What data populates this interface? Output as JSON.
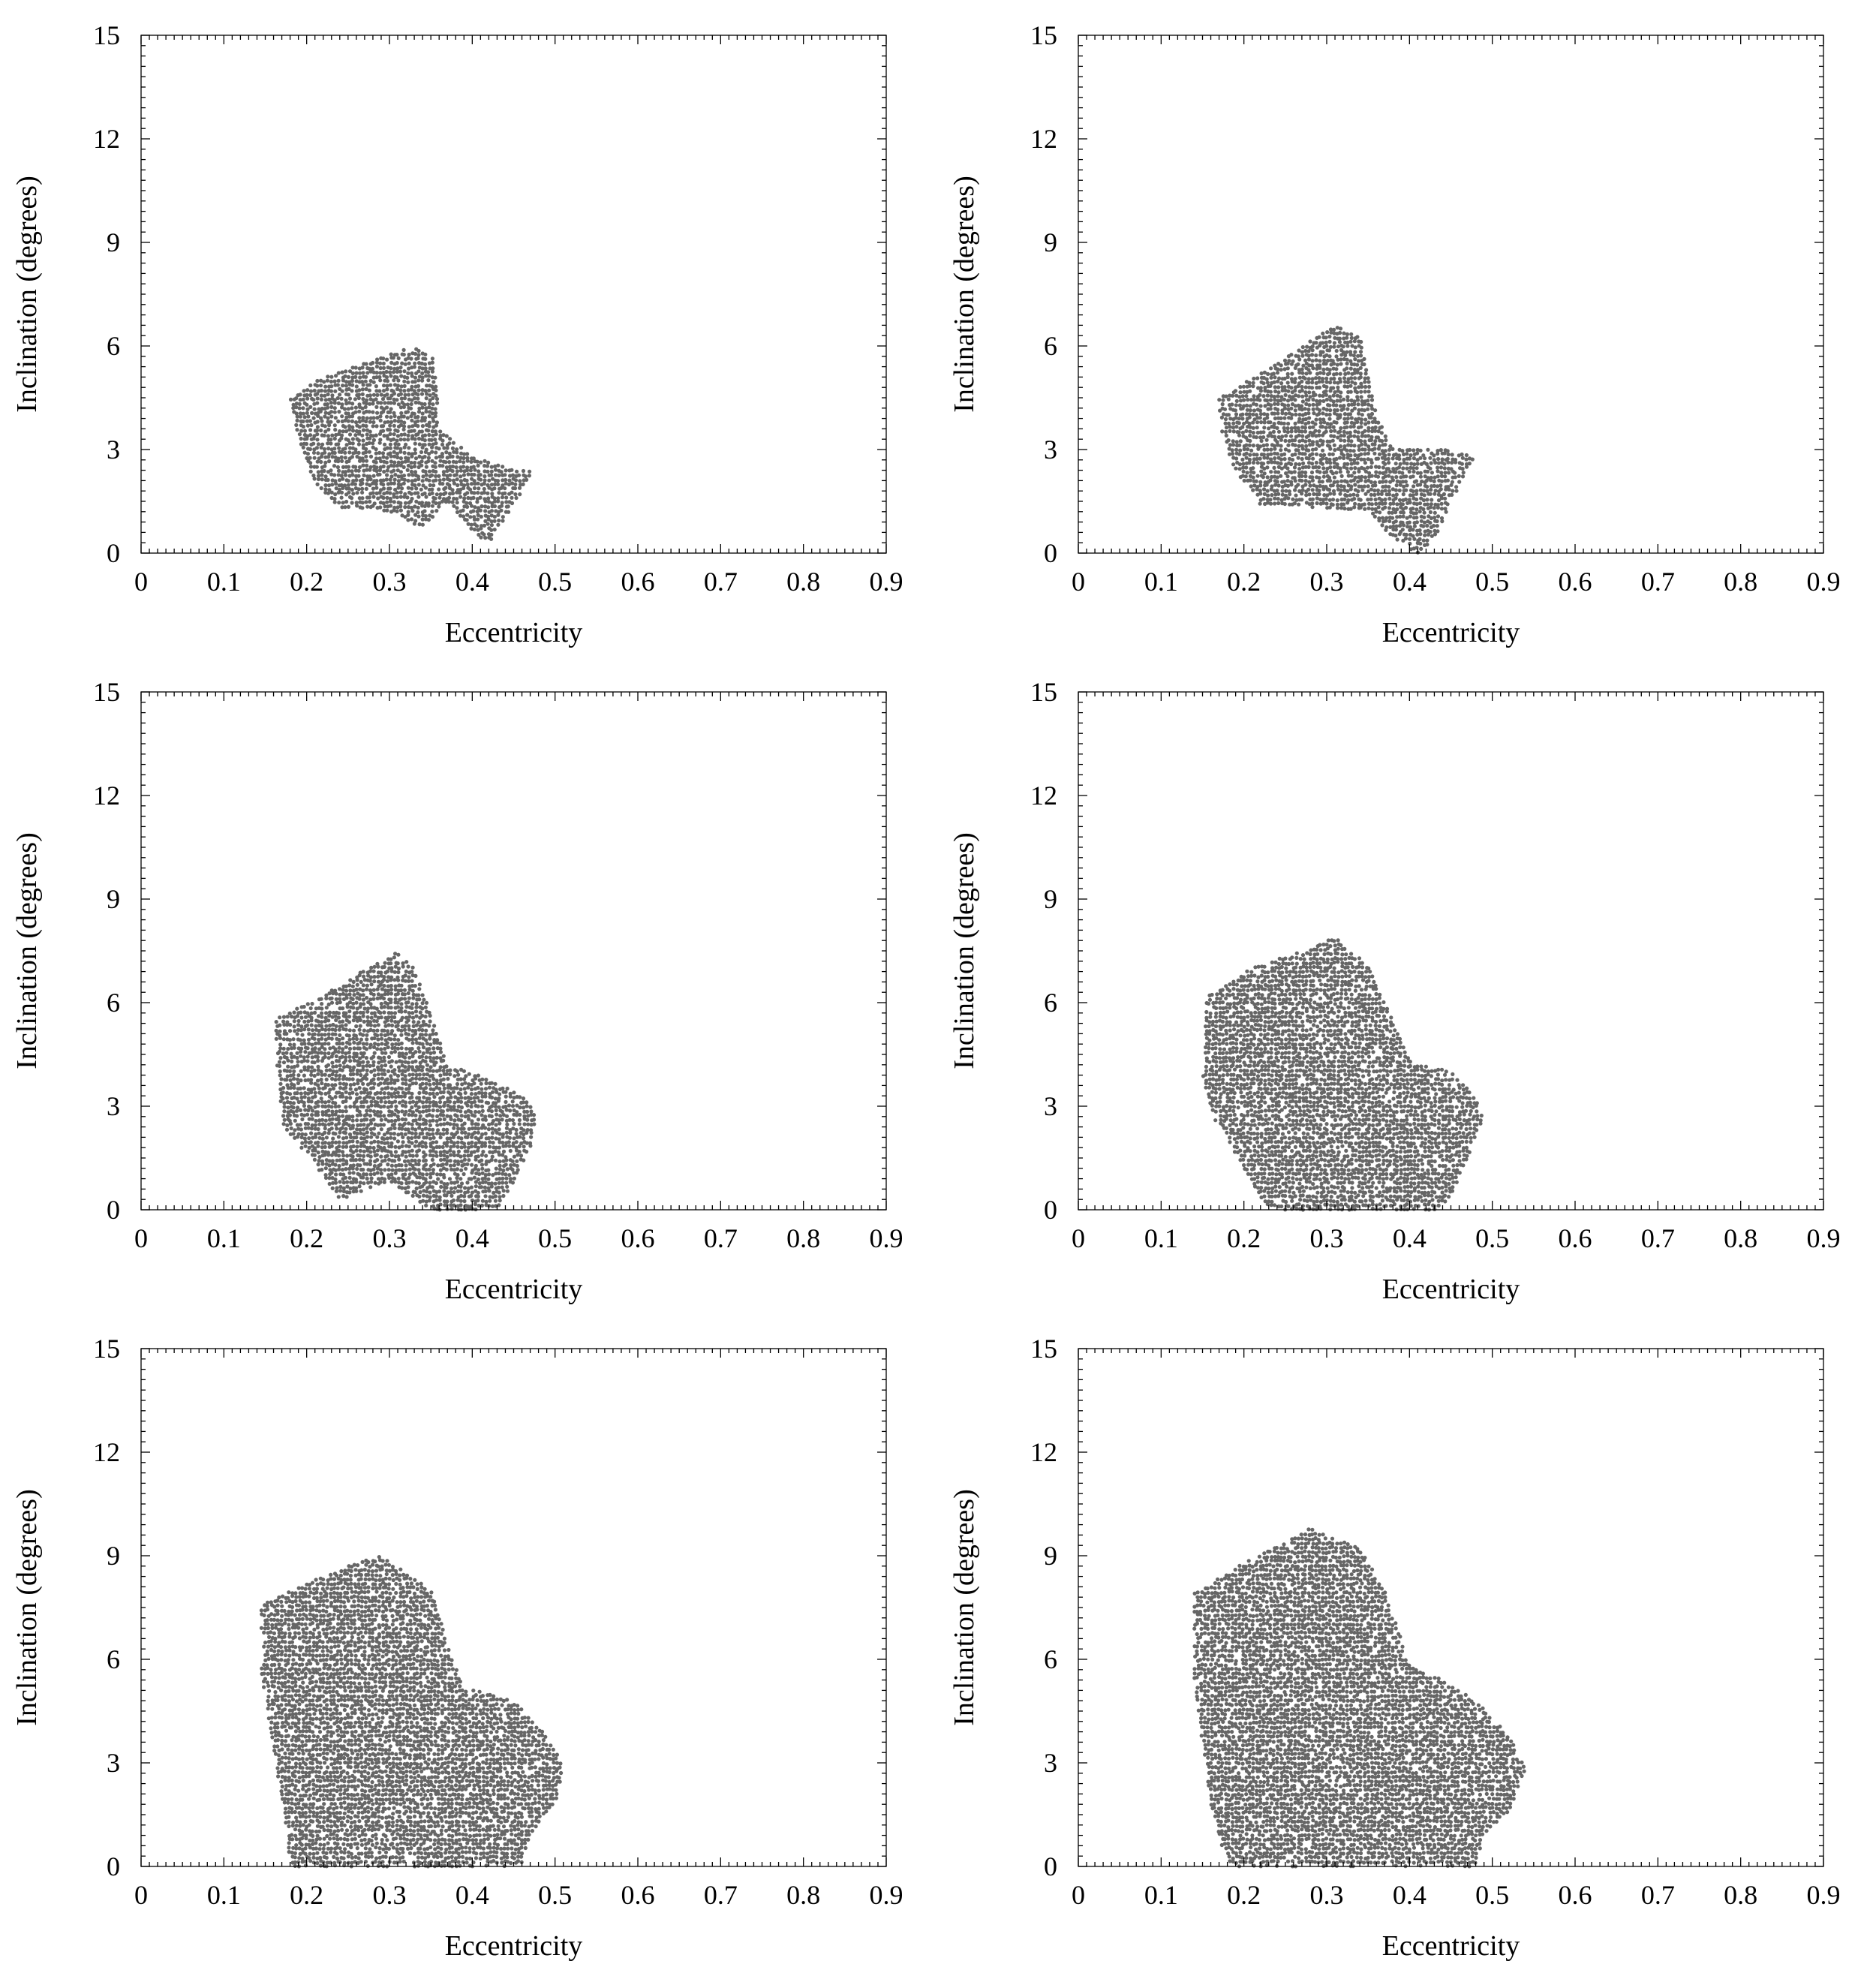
{
  "chart_data": [
    {
      "type": "scatter",
      "title": "",
      "xlabel": "Eccentricity",
      "ylabel": "Inclination (degrees)",
      "xlim": [
        0,
        0.9
      ],
      "ylim": [
        0,
        15
      ],
      "xticks": [
        "0",
        "0.1",
        "0.2",
        "0.3",
        "0.4",
        "0.5",
        "0.6",
        "0.7",
        "0.8",
        "0.9"
      ],
      "yticks": [
        "0",
        "3",
        "6",
        "9",
        "12",
        "15"
      ],
      "point_color": "#666666",
      "region": [
        [
          0.18,
          4.5
        ],
        [
          0.22,
          5.1
        ],
        [
          0.27,
          5.5
        ],
        [
          0.33,
          6.0
        ],
        [
          0.355,
          5.6
        ],
        [
          0.36,
          3.6
        ],
        [
          0.4,
          2.8
        ],
        [
          0.45,
          2.4
        ],
        [
          0.475,
          2.4
        ],
        [
          0.45,
          1.4
        ],
        [
          0.42,
          0.3
        ],
        [
          0.4,
          0.6
        ],
        [
          0.37,
          1.5
        ],
        [
          0.34,
          0.7
        ],
        [
          0.3,
          1.2
        ],
        [
          0.24,
          1.3
        ],
        [
          0.21,
          2.0
        ],
        [
          0.19,
          3.3
        ]
      ]
    },
    {
      "type": "scatter",
      "title": "",
      "xlabel": "Eccentricity",
      "ylabel": "Inclination (degrees)",
      "xlim": [
        0,
        0.9
      ],
      "ylim": [
        0,
        15
      ],
      "xticks": [
        "0",
        "0.1",
        "0.2",
        "0.3",
        "0.4",
        "0.5",
        "0.6",
        "0.7",
        "0.8",
        "0.9"
      ],
      "yticks": [
        "0",
        "3",
        "6",
        "9",
        "12",
        "15"
      ],
      "point_color": "#666666",
      "region": [
        [
          0.17,
          4.5
        ],
        [
          0.22,
          5.2
        ],
        [
          0.27,
          6.0
        ],
        [
          0.31,
          6.6
        ],
        [
          0.34,
          6.3
        ],
        [
          0.36,
          4.0
        ],
        [
          0.38,
          3.0
        ],
        [
          0.45,
          3.0
        ],
        [
          0.48,
          2.8
        ],
        [
          0.45,
          1.5
        ],
        [
          0.43,
          0.4
        ],
        [
          0.41,
          0.0
        ],
        [
          0.38,
          0.4
        ],
        [
          0.35,
          1.2
        ],
        [
          0.3,
          1.3
        ],
        [
          0.22,
          1.4
        ],
        [
          0.19,
          2.4
        ],
        [
          0.17,
          3.6
        ]
      ]
    },
    {
      "type": "scatter",
      "title": "",
      "xlabel": "Eccentricity",
      "ylabel": "Inclination (degrees)",
      "xlim": [
        0,
        0.9
      ],
      "ylim": [
        0,
        15
      ],
      "xticks": [
        "0",
        "0.1",
        "0.2",
        "0.3",
        "0.4",
        "0.5",
        "0.6",
        "0.7",
        "0.8",
        "0.9"
      ],
      "yticks": [
        "0",
        "3",
        "6",
        "9",
        "12",
        "15"
      ],
      "point_color": "#666666",
      "region": [
        [
          0.16,
          5.5
        ],
        [
          0.22,
          6.2
        ],
        [
          0.26,
          6.8
        ],
        [
          0.31,
          7.5
        ],
        [
          0.33,
          7.0
        ],
        [
          0.36,
          5.0
        ],
        [
          0.37,
          4.2
        ],
        [
          0.42,
          3.8
        ],
        [
          0.46,
          3.3
        ],
        [
          0.48,
          2.7
        ],
        [
          0.47,
          1.8
        ],
        [
          0.45,
          0.8
        ],
        [
          0.43,
          0.0
        ],
        [
          0.35,
          0.0
        ],
        [
          0.3,
          0.8
        ],
        [
          0.24,
          0.3
        ],
        [
          0.21,
          1.3
        ],
        [
          0.17,
          2.5
        ]
      ]
    },
    {
      "type": "scatter",
      "title": "",
      "xlabel": "Eccentricity",
      "ylabel": "Inclination (degrees)",
      "xlim": [
        0,
        0.9
      ],
      "ylim": [
        0,
        15
      ],
      "xticks": [
        "0",
        "0.1",
        "0.2",
        "0.3",
        "0.4",
        "0.5",
        "0.6",
        "0.7",
        "0.8",
        "0.9"
      ],
      "yticks": [
        "0",
        "3",
        "6",
        "9",
        "12",
        "15"
      ],
      "point_color": "#666666",
      "region": [
        [
          0.155,
          6.2
        ],
        [
          0.21,
          7.0
        ],
        [
          0.27,
          7.5
        ],
        [
          0.31,
          7.9
        ],
        [
          0.35,
          7.1
        ],
        [
          0.38,
          5.5
        ],
        [
          0.4,
          4.3
        ],
        [
          0.45,
          4.0
        ],
        [
          0.48,
          3.3
        ],
        [
          0.49,
          2.6
        ],
        [
          0.47,
          1.5
        ],
        [
          0.45,
          0.3
        ],
        [
          0.43,
          0.0
        ],
        [
          0.23,
          0.0
        ],
        [
          0.19,
          1.6
        ],
        [
          0.165,
          2.6
        ],
        [
          0.15,
          3.8
        ]
      ]
    },
    {
      "type": "scatter",
      "title": "",
      "xlabel": "Eccentricity",
      "ylabel": "Inclination (degrees)",
      "xlim": [
        0,
        0.9
      ],
      "ylim": [
        0,
        15
      ],
      "xticks": [
        "0",
        "0.1",
        "0.2",
        "0.3",
        "0.4",
        "0.5",
        "0.6",
        "0.7",
        "0.8",
        "0.9"
      ],
      "yticks": [
        "0",
        "3",
        "6",
        "9",
        "12",
        "15"
      ],
      "point_color": "#666666",
      "region": [
        [
          0.145,
          7.6
        ],
        [
          0.2,
          8.2
        ],
        [
          0.25,
          8.7
        ],
        [
          0.29,
          9.0
        ],
        [
          0.35,
          8.0
        ],
        [
          0.37,
          6.5
        ],
        [
          0.39,
          5.2
        ],
        [
          0.45,
          4.8
        ],
        [
          0.49,
          3.8
        ],
        [
          0.51,
          2.9
        ],
        [
          0.5,
          1.8
        ],
        [
          0.47,
          0.9
        ],
        [
          0.46,
          0.0
        ],
        [
          0.18,
          0.0
        ],
        [
          0.17,
          1.8
        ],
        [
          0.16,
          3.5
        ],
        [
          0.145,
          5.5
        ]
      ]
    },
    {
      "type": "scatter",
      "title": "",
      "xlabel": "Eccentricity",
      "ylabel": "Inclination (degrees)",
      "xlim": [
        0,
        0.9
      ],
      "ylim": [
        0,
        15
      ],
      "xticks": [
        "0",
        "0.1",
        "0.2",
        "0.3",
        "0.4",
        "0.5",
        "0.6",
        "0.7",
        "0.8",
        "0.9"
      ],
      "yticks": [
        "0",
        "3",
        "6",
        "9",
        "12",
        "15"
      ],
      "point_color": "#666666",
      "region": [
        [
          0.14,
          7.9
        ],
        [
          0.2,
          8.8
        ],
        [
          0.25,
          9.4
        ],
        [
          0.28,
          9.8
        ],
        [
          0.34,
          9.2
        ],
        [
          0.37,
          8.0
        ],
        [
          0.4,
          5.9
        ],
        [
          0.44,
          5.4
        ],
        [
          0.48,
          4.8
        ],
        [
          0.52,
          3.8
        ],
        [
          0.54,
          2.8
        ],
        [
          0.52,
          1.6
        ],
        [
          0.49,
          0.9
        ],
        [
          0.48,
          0.0
        ],
        [
          0.18,
          0.0
        ],
        [
          0.16,
          1.8
        ],
        [
          0.15,
          3.5
        ],
        [
          0.14,
          5.5
        ]
      ]
    }
  ]
}
